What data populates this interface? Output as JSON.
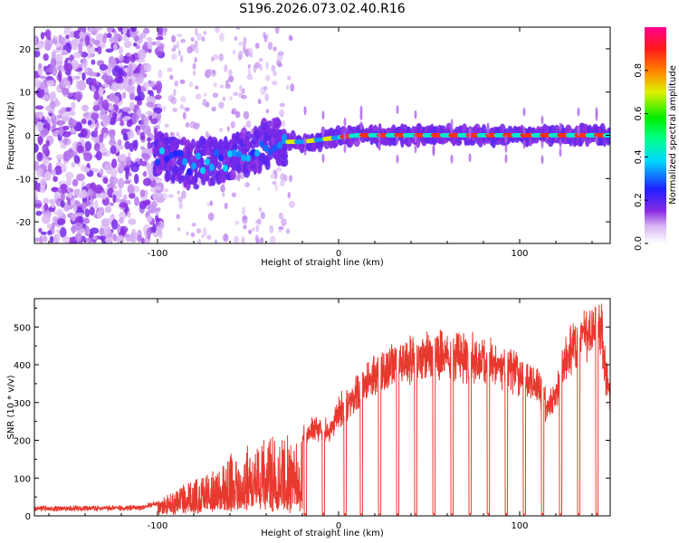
{
  "title": "S196.2026.073.02.40.R16",
  "chart_data": [
    {
      "type": "heatmap",
      "xlabel": "Height of straight line (km)",
      "ylabel": "Frequency (Hz)",
      "xlim": [
        -168,
        150
      ],
      "ylim": [
        -25,
        25
      ],
      "xticks": [
        -100,
        0,
        100
      ],
      "yticks": [
        -20,
        -10,
        0,
        10,
        20
      ],
      "colorbar": {
        "label": "Normalized spectral amplitude",
        "range": [
          0.0,
          1.0
        ],
        "ticks": [
          "0.0",
          "0.2",
          "0.4",
          "0.6",
          "0.8"
        ],
        "tick_values": [
          0.0,
          0.2,
          0.4,
          0.6,
          0.8
        ]
      },
      "ridge": [
        {
          "x": -100,
          "y": -4.5
        },
        {
          "x": -90,
          "y": -5.5
        },
        {
          "x": -80,
          "y": -7
        },
        {
          "x": -70,
          "y": -6
        },
        {
          "x": -60,
          "y": -5.5
        },
        {
          "x": -50,
          "y": -4
        },
        {
          "x": -40,
          "y": -2
        },
        {
          "x": -30,
          "y": -1.5
        },
        {
          "x": -20,
          "y": -1.5
        },
        {
          "x": -10,
          "y": -1
        },
        {
          "x": 0,
          "y": -0.5
        },
        {
          "x": 10,
          "y": 0
        },
        {
          "x": 50,
          "y": 0
        },
        {
          "x": 100,
          "y": 0
        },
        {
          "x": 150,
          "y": 0
        }
      ]
    },
    {
      "type": "line",
      "xlabel": "Height of straight line (km)",
      "ylabel": "SNR (10 * v/v)",
      "xlim": [
        -168,
        150
      ],
      "ylim": [
        0,
        575
      ],
      "xticks": [
        -100,
        0,
        100
      ],
      "yticks": [
        0,
        100,
        200,
        300,
        400,
        500
      ],
      "color": "#e8392f",
      "envelope": [
        {
          "x": -168,
          "y": 20
        },
        {
          "x": -110,
          "y": 22
        },
        {
          "x": -100,
          "y": 35
        },
        {
          "x": -90,
          "y": 70
        },
        {
          "x": -80,
          "y": 90
        },
        {
          "x": -70,
          "y": 115
        },
        {
          "x": -60,
          "y": 150
        },
        {
          "x": -50,
          "y": 170
        },
        {
          "x": -40,
          "y": 190
        },
        {
          "x": -30,
          "y": 205
        },
        {
          "x": -20,
          "y": 220
        },
        {
          "x": -10,
          "y": 250
        },
        {
          "x": -5,
          "y": 230
        },
        {
          "x": 0,
          "y": 290
        },
        {
          "x": 10,
          "y": 340
        },
        {
          "x": 20,
          "y": 390
        },
        {
          "x": 30,
          "y": 420
        },
        {
          "x": 40,
          "y": 440
        },
        {
          "x": 50,
          "y": 445
        },
        {
          "x": 60,
          "y": 450
        },
        {
          "x": 70,
          "y": 440
        },
        {
          "x": 80,
          "y": 430
        },
        {
          "x": 90,
          "y": 420
        },
        {
          "x": 100,
          "y": 400
        },
        {
          "x": 110,
          "y": 360
        },
        {
          "x": 115,
          "y": 300
        },
        {
          "x": 120,
          "y": 330
        },
        {
          "x": 125,
          "y": 430
        },
        {
          "x": 130,
          "y": 470
        },
        {
          "x": 135,
          "y": 500
        },
        {
          "x": 140,
          "y": 510
        },
        {
          "x": 145,
          "y": 530
        },
        {
          "x": 148,
          "y": 380
        },
        {
          "x": 150,
          "y": 320
        }
      ],
      "dropouts": [
        -19,
        -9,
        3,
        12,
        22,
        32,
        42,
        52,
        62,
        72,
        82,
        92,
        102,
        112,
        122,
        132,
        142
      ]
    }
  ]
}
